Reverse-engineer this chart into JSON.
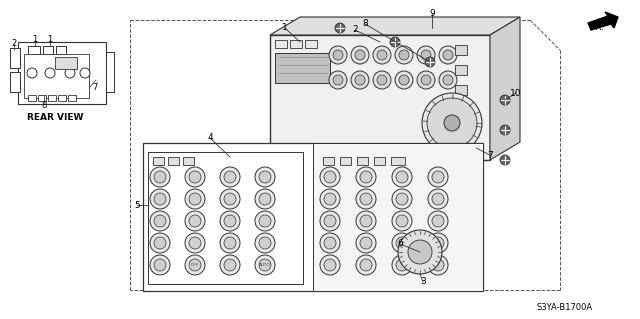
{
  "bg_color": "#ffffff",
  "diagram_code": "S3YA-B1700A",
  "fr_label": "FR.",
  "figsize": [
    6.4,
    3.19
  ],
  "dpi": 100,
  "rear_view_label": "REAR VIEW",
  "line_color": "#333333",
  "label_color": "#000000",
  "gray_fill": "#888888",
  "light_gray": "#bbbbbb",
  "mid_gray": "#999999"
}
